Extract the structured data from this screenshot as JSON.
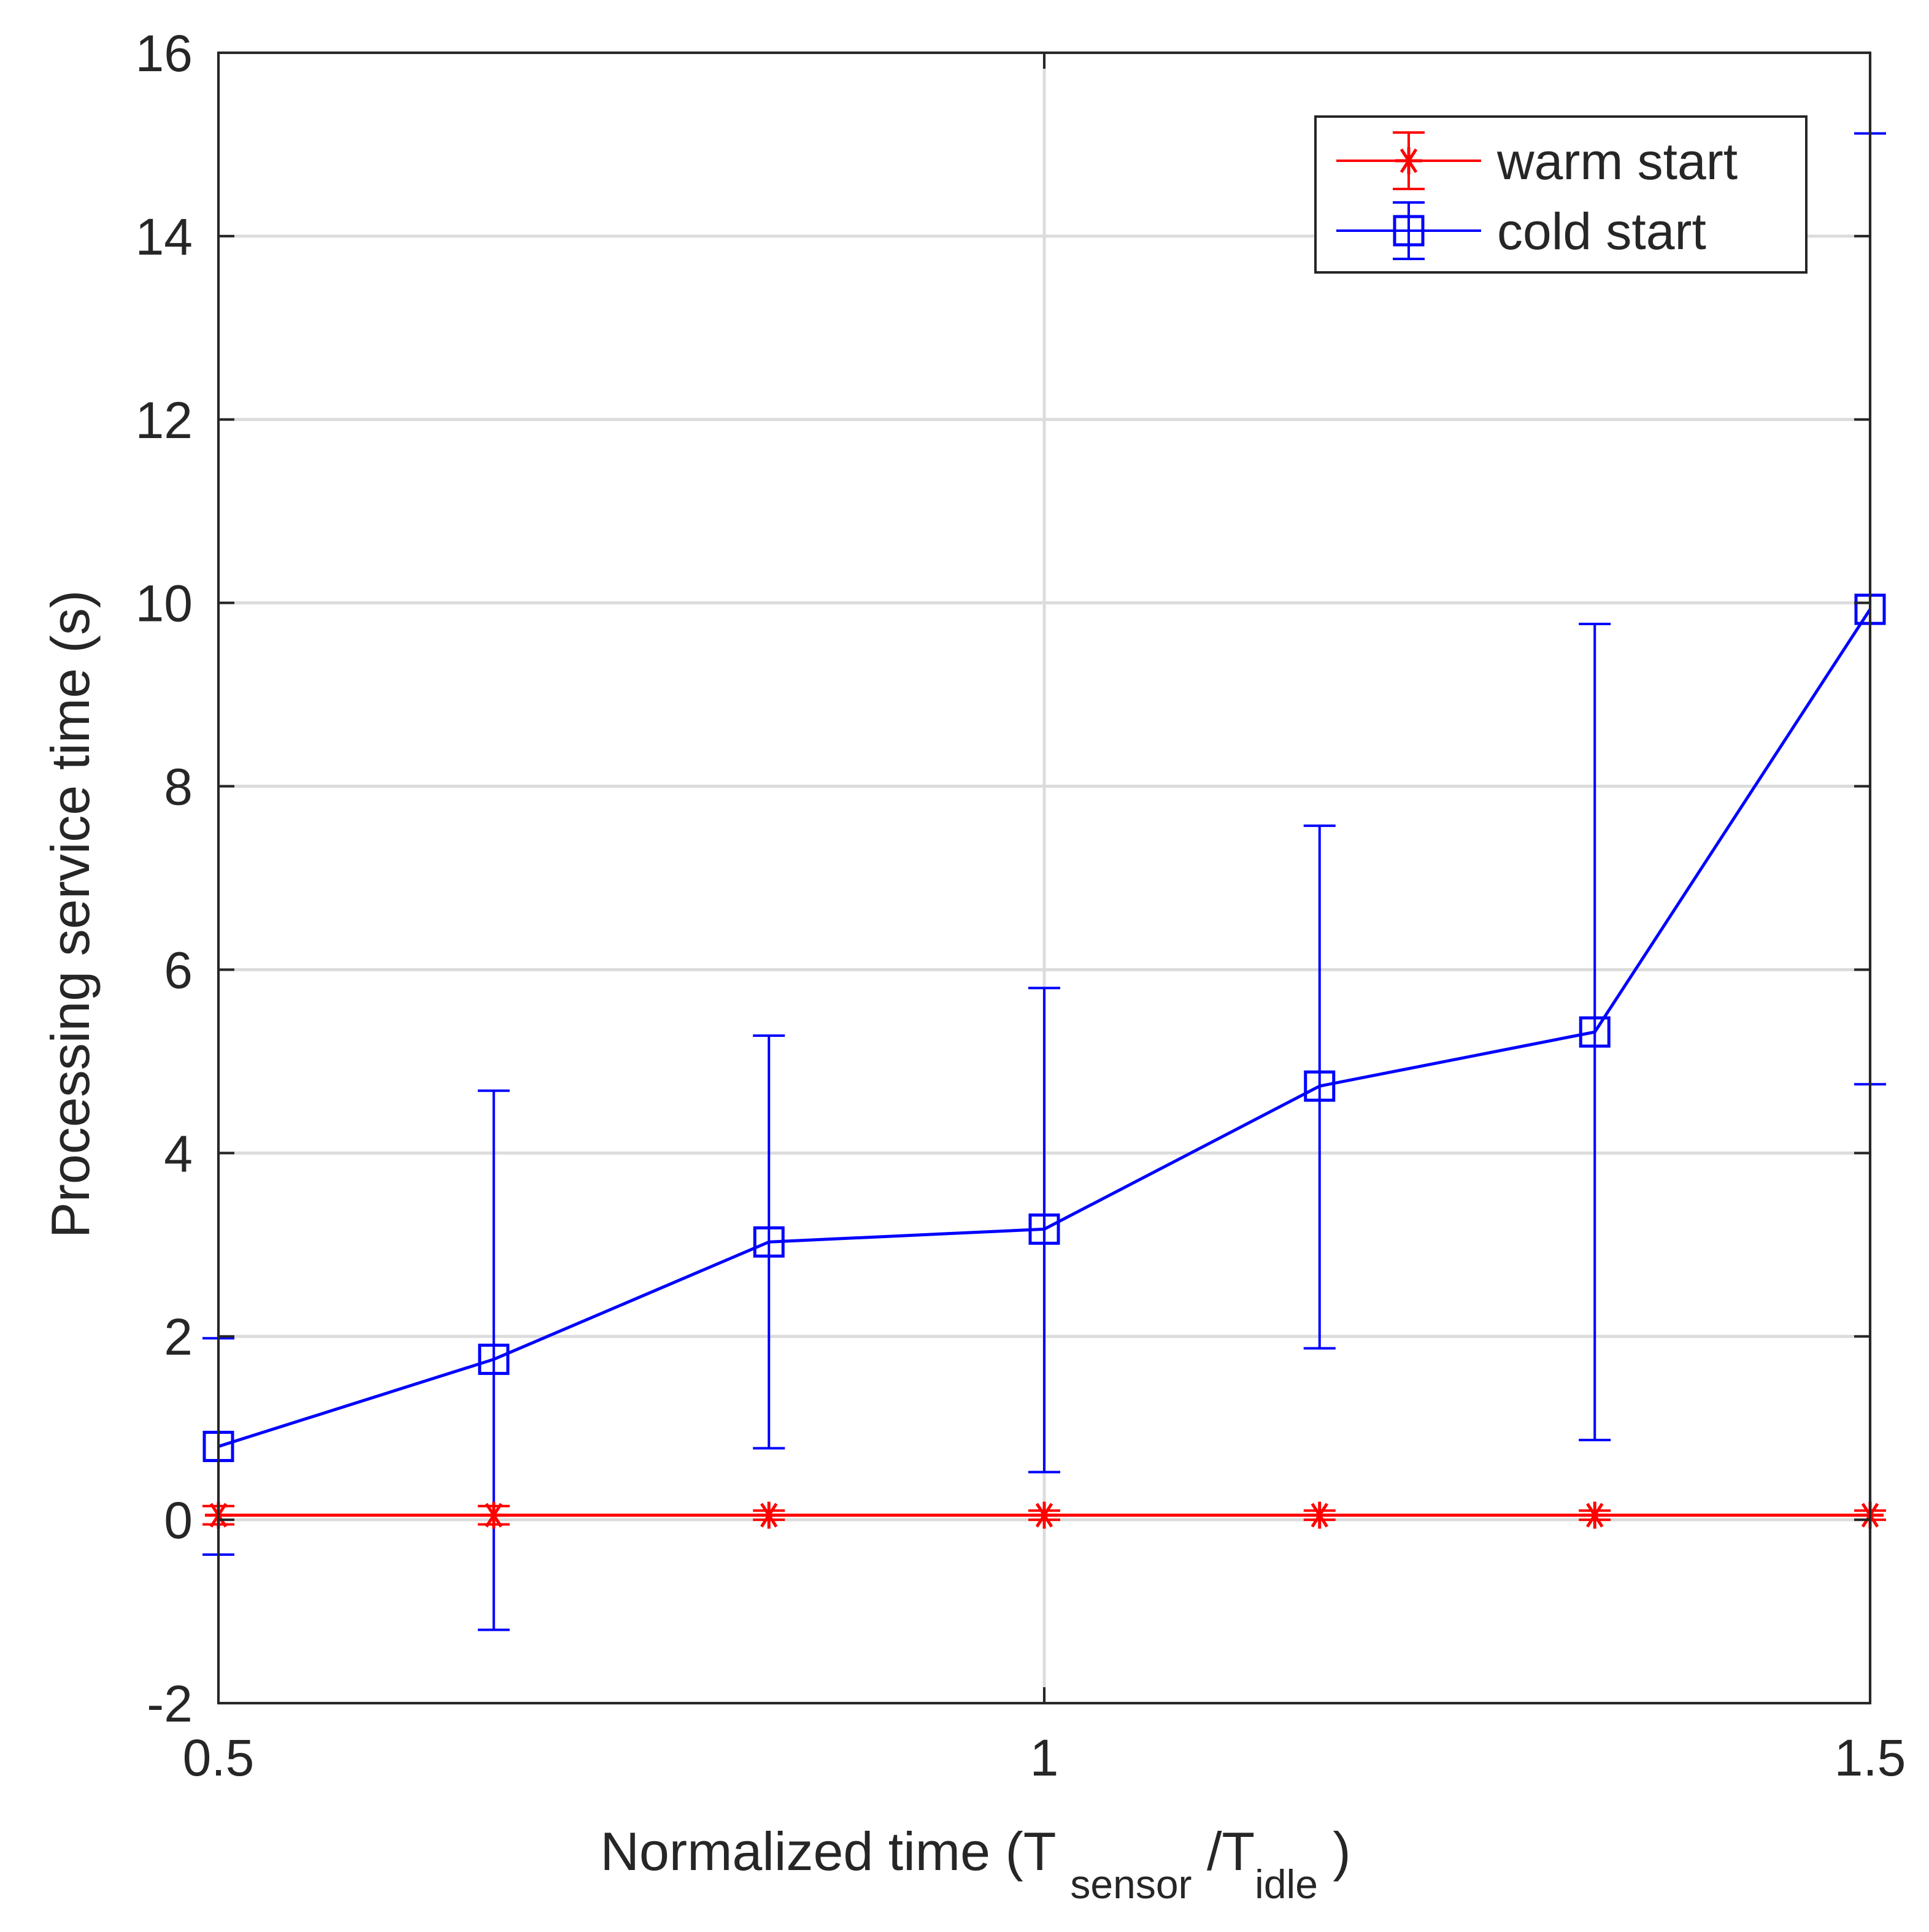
{
  "chart_data": {
    "type": "line",
    "title": "",
    "xlabel": {
      "prefix": "Normalized time (T",
      "sub1": "sensor",
      "middle": "/T",
      "sub2": "idle",
      "suffix": ")"
    },
    "ylabel": "Processing service time (s)",
    "xlim": [
      0.5,
      1.5
    ],
    "ylim": [
      -2,
      16
    ],
    "xticks": [
      0.5,
      1,
      1.5
    ],
    "xtick_labels": [
      "0.5",
      "1",
      "1.5"
    ],
    "yticks": [
      -2,
      0,
      2,
      4,
      6,
      8,
      10,
      12,
      14,
      16
    ],
    "ytick_labels": [
      "-2",
      "0",
      "2",
      "4",
      "6",
      "8",
      "10",
      "12",
      "14",
      "16"
    ],
    "grid": true,
    "legend_position": "top-right",
    "x": [
      0.5,
      0.6667,
      0.8333,
      1.0,
      1.1667,
      1.3333,
      1.5
    ],
    "series": [
      {
        "name": "warm start",
        "color": "#ff0000",
        "marker": "asterisk",
        "values": [
          0.05,
          0.05,
          0.05,
          0.05,
          0.05,
          0.05,
          0.05
        ],
        "err_low": [
          -0.05,
          -0.05,
          0.0,
          0.0,
          0.0,
          0.0,
          0.0
        ],
        "err_high": [
          0.15,
          0.15,
          0.1,
          0.1,
          0.1,
          0.1,
          0.1
        ]
      },
      {
        "name": "cold start",
        "color": "#0000ff",
        "marker": "square",
        "values": [
          0.8,
          1.75,
          3.03,
          3.17,
          4.73,
          5.32,
          9.93
        ],
        "err_low": [
          -0.38,
          -1.2,
          0.78,
          0.52,
          1.87,
          0.87,
          4.75
        ],
        "err_high": [
          1.98,
          4.68,
          5.28,
          5.8,
          7.57,
          9.77,
          15.12
        ]
      }
    ]
  }
}
